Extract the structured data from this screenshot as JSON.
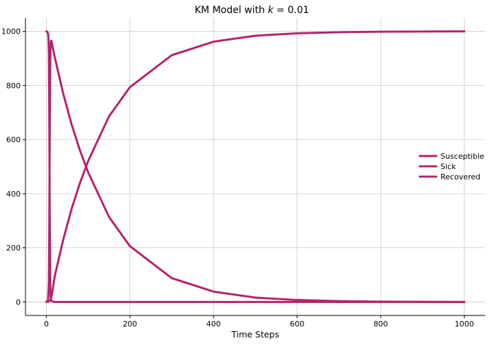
{
  "chart_data": {
    "type": "line",
    "title": "KM Model with k = 0.01",
    "title_parts": {
      "prefix": "KM Model with ",
      "variable": "k",
      "suffix": " = 0.01"
    },
    "xlabel": "Time Steps",
    "ylabel": "",
    "xlim": [
      -50,
      1050
    ],
    "ylim": [
      -50,
      1050
    ],
    "xticks": [
      0,
      200,
      400,
      600,
      800,
      1000
    ],
    "yticks": [
      0,
      200,
      400,
      600,
      800,
      1000
    ],
    "grid": true,
    "legend_position": "center-right",
    "series": [
      {
        "name": "Susceptible",
        "color": "#b5226b",
        "x": [
          0,
          2,
          4,
          5,
          6,
          7,
          8,
          9,
          10,
          12,
          15,
          20,
          50,
          100,
          1000
        ],
        "y": [
          1000,
          999,
          993,
          975,
          920,
          700,
          350,
          90,
          20,
          5,
          1,
          0,
          0,
          0,
          0
        ]
      },
      {
        "name": "Sick",
        "color": "#b5226b",
        "x": [
          0,
          4,
          6,
          7,
          8,
          9,
          10,
          11,
          12,
          13,
          14,
          20,
          40,
          60,
          80,
          100,
          150,
          200,
          300,
          400,
          500,
          600,
          700,
          800,
          1000
        ],
        "y": [
          0,
          5,
          70,
          270,
          600,
          850,
          940,
          965,
          966,
          960,
          950,
          905,
          772,
          658,
          562,
          479,
          314,
          206,
          88,
          38,
          16,
          7,
          3,
          1,
          0
        ]
      },
      {
        "name": "Recovered",
        "color": "#b5226b",
        "x": [
          0,
          5,
          8,
          10,
          12,
          14,
          20,
          40,
          60,
          80,
          100,
          150,
          200,
          300,
          400,
          500,
          600,
          700,
          800,
          1000
        ],
        "y": [
          0,
          1,
          3,
          8,
          20,
          35,
          95,
          228,
          342,
          438,
          521,
          686,
          794,
          912,
          962,
          984,
          993,
          997,
          999,
          1000
        ]
      }
    ]
  }
}
